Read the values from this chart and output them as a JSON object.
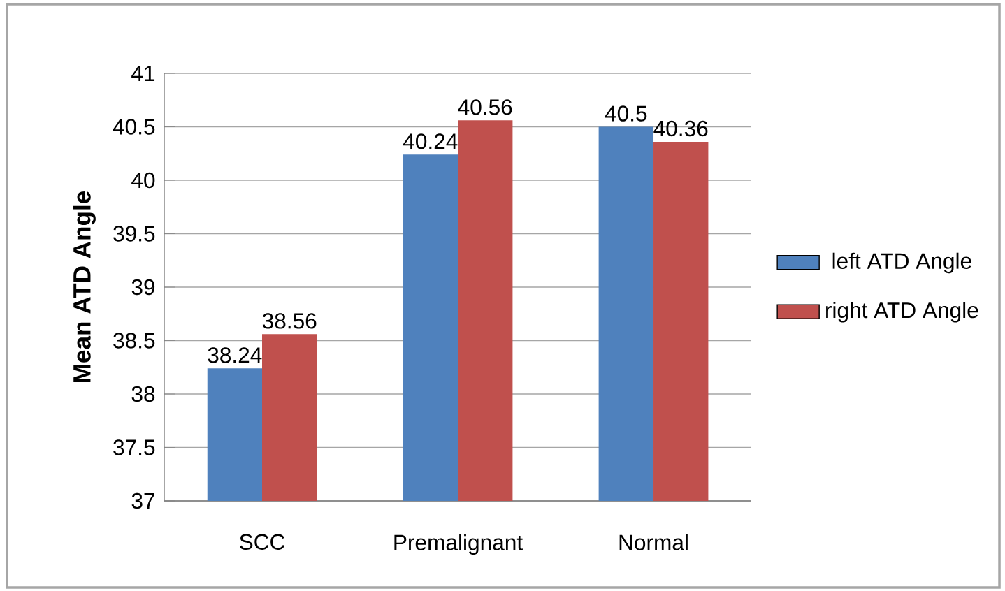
{
  "chart_data": {
    "type": "bar",
    "ylabel": "Mean ATD Angle",
    "categories": [
      "SCC",
      "Premalignant",
      "Normal"
    ],
    "series": [
      {
        "name": "left ATD Angle",
        "color": "#4f81bd",
        "values": [
          38.24,
          40.24,
          40.5
        ]
      },
      {
        "name": "right ATD Angle",
        "color": "#c0504d",
        "values": [
          38.56,
          40.56,
          40.36
        ]
      }
    ],
    "ylim": [
      37,
      41
    ],
    "yticks": [
      37,
      37.5,
      38,
      38.5,
      39,
      39.5,
      40,
      40.5,
      41
    ],
    "grid": "y",
    "legend": "right",
    "data_labels": true
  }
}
